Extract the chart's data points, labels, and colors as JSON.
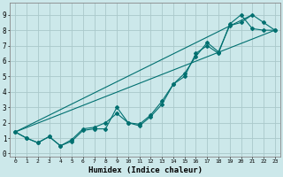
{
  "xlabel": "Humidex (Indice chaleur)",
  "background_color": "#cce8ea",
  "grid_color": "#aac8ca",
  "line_color": "#007070",
  "xlim": [
    -0.5,
    23.5
  ],
  "ylim": [
    -0.2,
    9.8
  ],
  "xticks": [
    0,
    1,
    2,
    3,
    4,
    5,
    6,
    7,
    8,
    9,
    10,
    11,
    12,
    13,
    14,
    15,
    16,
    17,
    18,
    19,
    20,
    21,
    22,
    23
  ],
  "yticks": [
    0,
    1,
    2,
    3,
    4,
    5,
    6,
    7,
    8,
    9
  ],
  "line1_x": [
    0,
    1,
    2,
    3,
    4,
    5,
    6,
    7,
    8,
    9,
    10,
    11,
    12,
    13,
    14,
    15,
    16,
    17,
    18,
    19,
    20,
    21,
    22,
    23
  ],
  "line1_y": [
    1.4,
    1.0,
    0.7,
    1.1,
    0.5,
    0.8,
    1.5,
    1.6,
    1.6,
    3.0,
    2.0,
    1.8,
    2.4,
    3.2,
    4.5,
    5.0,
    6.5,
    7.0,
    6.5,
    8.4,
    9.0,
    8.1,
    8.0,
    8.0
  ],
  "line2_x": [
    0,
    1,
    2,
    3,
    4,
    5,
    6,
    7,
    8,
    9,
    10,
    11,
    12,
    13,
    14,
    15,
    16,
    17,
    18,
    19,
    20,
    21,
    22,
    23
  ],
  "line2_y": [
    1.4,
    1.0,
    0.7,
    1.1,
    0.5,
    0.9,
    1.6,
    1.7,
    2.0,
    2.6,
    2.0,
    1.9,
    2.5,
    3.4,
    4.5,
    5.2,
    6.3,
    7.2,
    6.6,
    8.3,
    8.5,
    9.0,
    8.5,
    8.0
  ],
  "line3_x": [
    0,
    23
  ],
  "line3_y": [
    1.4,
    8.0
  ],
  "line4_x": [
    0,
    21
  ],
  "line4_y": [
    1.4,
    9.0
  ]
}
